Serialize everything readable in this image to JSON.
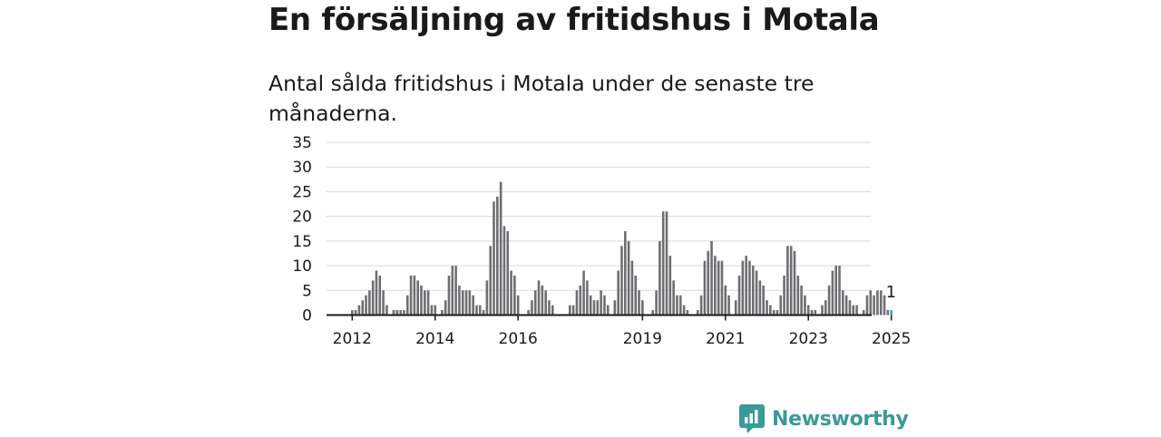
{
  "title": "En försäljning av fritidshus i Motala",
  "subtitle": "Antal sålda fritidshus i Motala under de senaste tre månaderna.",
  "brand": {
    "name": "Newsworthy",
    "icon": "bar-chart-speech-bubble-icon",
    "color": "#3a9a98"
  },
  "colors": {
    "bar": "#6f6f73",
    "highlight": "#3fb3b5",
    "grid": "#d9d9d9",
    "axis": "#1a1a1a"
  },
  "chart_data": {
    "type": "bar",
    "xlabel": "",
    "ylabel": "",
    "ylim": [
      0,
      35
    ],
    "yticks": [
      0,
      5,
      10,
      15,
      20,
      25,
      30,
      35
    ],
    "grid": true,
    "x_start": "2012-01",
    "x_end": "2025-01",
    "xticks": [
      "2012",
      "2014",
      "2016",
      "2019",
      "2021",
      "2023",
      "2025"
    ],
    "values": [
      1,
      1,
      2,
      3,
      4,
      5,
      7,
      9,
      8,
      5,
      2,
      0,
      1,
      1,
      1,
      1,
      4,
      8,
      8,
      7,
      6,
      5,
      5,
      2,
      2,
      0,
      1,
      3,
      8,
      10,
      10,
      6,
      5,
      5,
      5,
      4,
      2,
      2,
      1,
      7,
      14,
      23,
      24,
      27,
      18,
      17,
      9,
      8,
      4,
      0,
      0,
      1,
      3,
      5,
      7,
      6,
      5,
      3,
      2,
      0,
      0,
      0,
      0,
      2,
      2,
      5,
      6,
      9,
      7,
      4,
      3,
      3,
      5,
      4,
      2,
      0,
      3,
      9,
      14,
      17,
      15,
      11,
      8,
      5,
      3,
      0,
      0,
      1,
      5,
      15,
      21,
      21,
      12,
      7,
      4,
      4,
      2,
      1,
      0,
      0,
      1,
      4,
      11,
      13,
      15,
      12,
      11,
      11,
      6,
      4,
      0,
      3,
      8,
      11,
      12,
      11,
      10,
      9,
      7,
      6,
      3,
      2,
      1,
      1,
      4,
      8,
      14,
      14,
      13,
      8,
      6,
      4,
      2,
      1,
      1,
      0,
      2,
      3,
      6,
      9,
      10,
      10,
      5,
      4,
      3,
      2,
      2,
      0,
      1,
      4,
      5,
      4,
      5,
      5,
      4,
      1,
      1
    ],
    "highlight": {
      "label": "2025-01",
      "value": 1,
      "annotation": "1"
    }
  }
}
